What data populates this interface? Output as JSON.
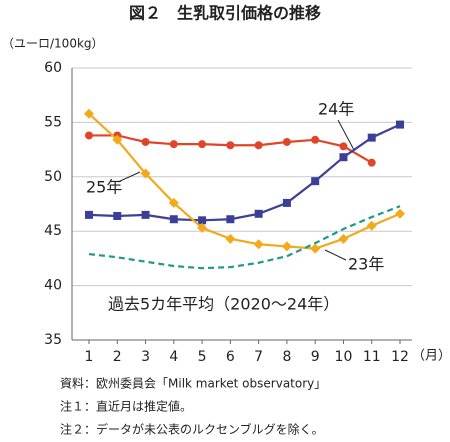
{
  "chart_data": {
    "type": "line",
    "title": "図２　生乳取引価格の推移",
    "y_label": "（ユーロ/100kg）",
    "x_unit": "（月）",
    "categories": [
      "1",
      "2",
      "3",
      "4",
      "5",
      "6",
      "7",
      "8",
      "9",
      "10",
      "11",
      "12"
    ],
    "ylim": [
      35,
      60
    ],
    "yticks": [
      35,
      40,
      45,
      50,
      55,
      60
    ],
    "grid": true,
    "series": [
      {
        "name": "24年",
        "color": "#e0452a",
        "marker": "circle",
        "dash": false,
        "values": [
          53.8,
          53.8,
          53.2,
          53.0,
          53.0,
          52.9,
          52.9,
          53.2,
          53.4,
          52.8,
          51.3,
          null
        ]
      },
      {
        "name": "25年",
        "color": "#3c3f98",
        "marker": "square",
        "dash": false,
        "values": [
          46.5,
          46.4,
          46.5,
          46.1,
          46.0,
          46.1,
          46.6,
          47.6,
          49.6,
          51.8,
          53.6,
          54.8
        ]
      },
      {
        "name": "23年",
        "color": "#f2a91c",
        "marker": "diamond",
        "dash": false,
        "values": [
          55.8,
          53.4,
          50.3,
          47.6,
          45.3,
          44.3,
          43.8,
          43.6,
          43.4,
          44.3,
          45.5,
          46.6
        ]
      },
      {
        "name": "過去5カ年平均（2020～24年）",
        "color": "#1e9a8c",
        "marker": "none",
        "dash": true,
        "values": [
          42.9,
          42.6,
          42.2,
          41.8,
          41.6,
          41.7,
          42.1,
          42.7,
          43.9,
          45.2,
          46.3,
          47.3
        ]
      }
    ],
    "notes": [
      "資料：欧州委員会「Milk market observatory」",
      "注１：直近月は推定値。",
      "注２：データが未公表のルクセンブルグを除く。"
    ]
  }
}
